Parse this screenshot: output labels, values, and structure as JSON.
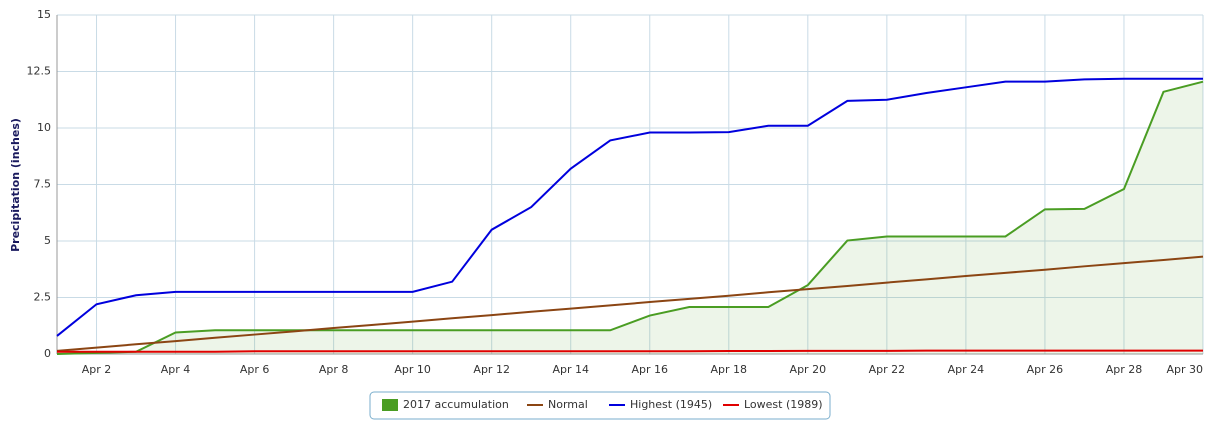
{
  "chart_data": {
    "type": "line",
    "ylabel": "Precipitation (inches)",
    "categories": [
      null,
      "Apr 2",
      null,
      "Apr 4",
      null,
      "Apr 6",
      null,
      "Apr 8",
      null,
      "Apr 10",
      null,
      "Apr 12",
      null,
      "Apr 14",
      null,
      "Apr 16",
      null,
      "Apr 18",
      null,
      "Apr 20",
      null,
      "Apr 22",
      null,
      "Apr 24",
      null,
      "Apr 26",
      null,
      "Apr 28",
      null,
      "Apr 30"
    ],
    "ylim": [
      0,
      15
    ],
    "yticks": [
      0,
      2.5,
      5,
      7.5,
      10,
      12.5,
      15
    ],
    "grid": true,
    "legend": "bottom",
    "series": [
      {
        "name": "2017 accumulation",
        "color": "#4a9d23",
        "fill": true,
        "values": [
          0,
          0.05,
          0.1,
          0.95,
          1.05,
          1.05,
          1.05,
          1.05,
          1.05,
          1.05,
          1.05,
          1.05,
          1.05,
          1.05,
          1.05,
          1.7,
          2.08,
          2.08,
          2.08,
          3.05,
          5.02,
          5.2,
          5.2,
          5.2,
          5.2,
          6.4,
          6.42,
          7.3,
          11.6,
          12.05
        ]
      },
      {
        "name": "Normal",
        "color": "#8b4513",
        "values": [
          0.14,
          0.28,
          0.43,
          0.57,
          0.72,
          0.86,
          1.0,
          1.15,
          1.29,
          1.43,
          1.58,
          1.72,
          1.87,
          2.01,
          2.15,
          2.3,
          2.44,
          2.58,
          2.73,
          2.87,
          3.01,
          3.16,
          3.3,
          3.45,
          3.59,
          3.73,
          3.88,
          4.02,
          4.16,
          4.31
        ]
      },
      {
        "name": "Highest (1945)",
        "color": "#0000dd",
        "values": [
          0.8,
          2.2,
          2.6,
          2.75,
          2.75,
          2.75,
          2.75,
          2.75,
          2.75,
          2.75,
          3.2,
          5.5,
          6.5,
          8.2,
          9.45,
          9.8,
          9.8,
          9.82,
          10.1,
          10.1,
          11.2,
          11.25,
          11.55,
          11.8,
          12.05,
          12.05,
          12.15,
          12.18,
          12.18,
          12.18
        ]
      },
      {
        "name": "Lowest (1989)",
        "color": "#e00000",
        "values": [
          0.1,
          0.1,
          0.1,
          0.1,
          0.1,
          0.12,
          0.12,
          0.12,
          0.12,
          0.12,
          0.12,
          0.12,
          0.12,
          0.12,
          0.12,
          0.12,
          0.12,
          0.13,
          0.13,
          0.14,
          0.14,
          0.14,
          0.15,
          0.15,
          0.15,
          0.15,
          0.15,
          0.15,
          0.15,
          0.15
        ]
      }
    ]
  }
}
